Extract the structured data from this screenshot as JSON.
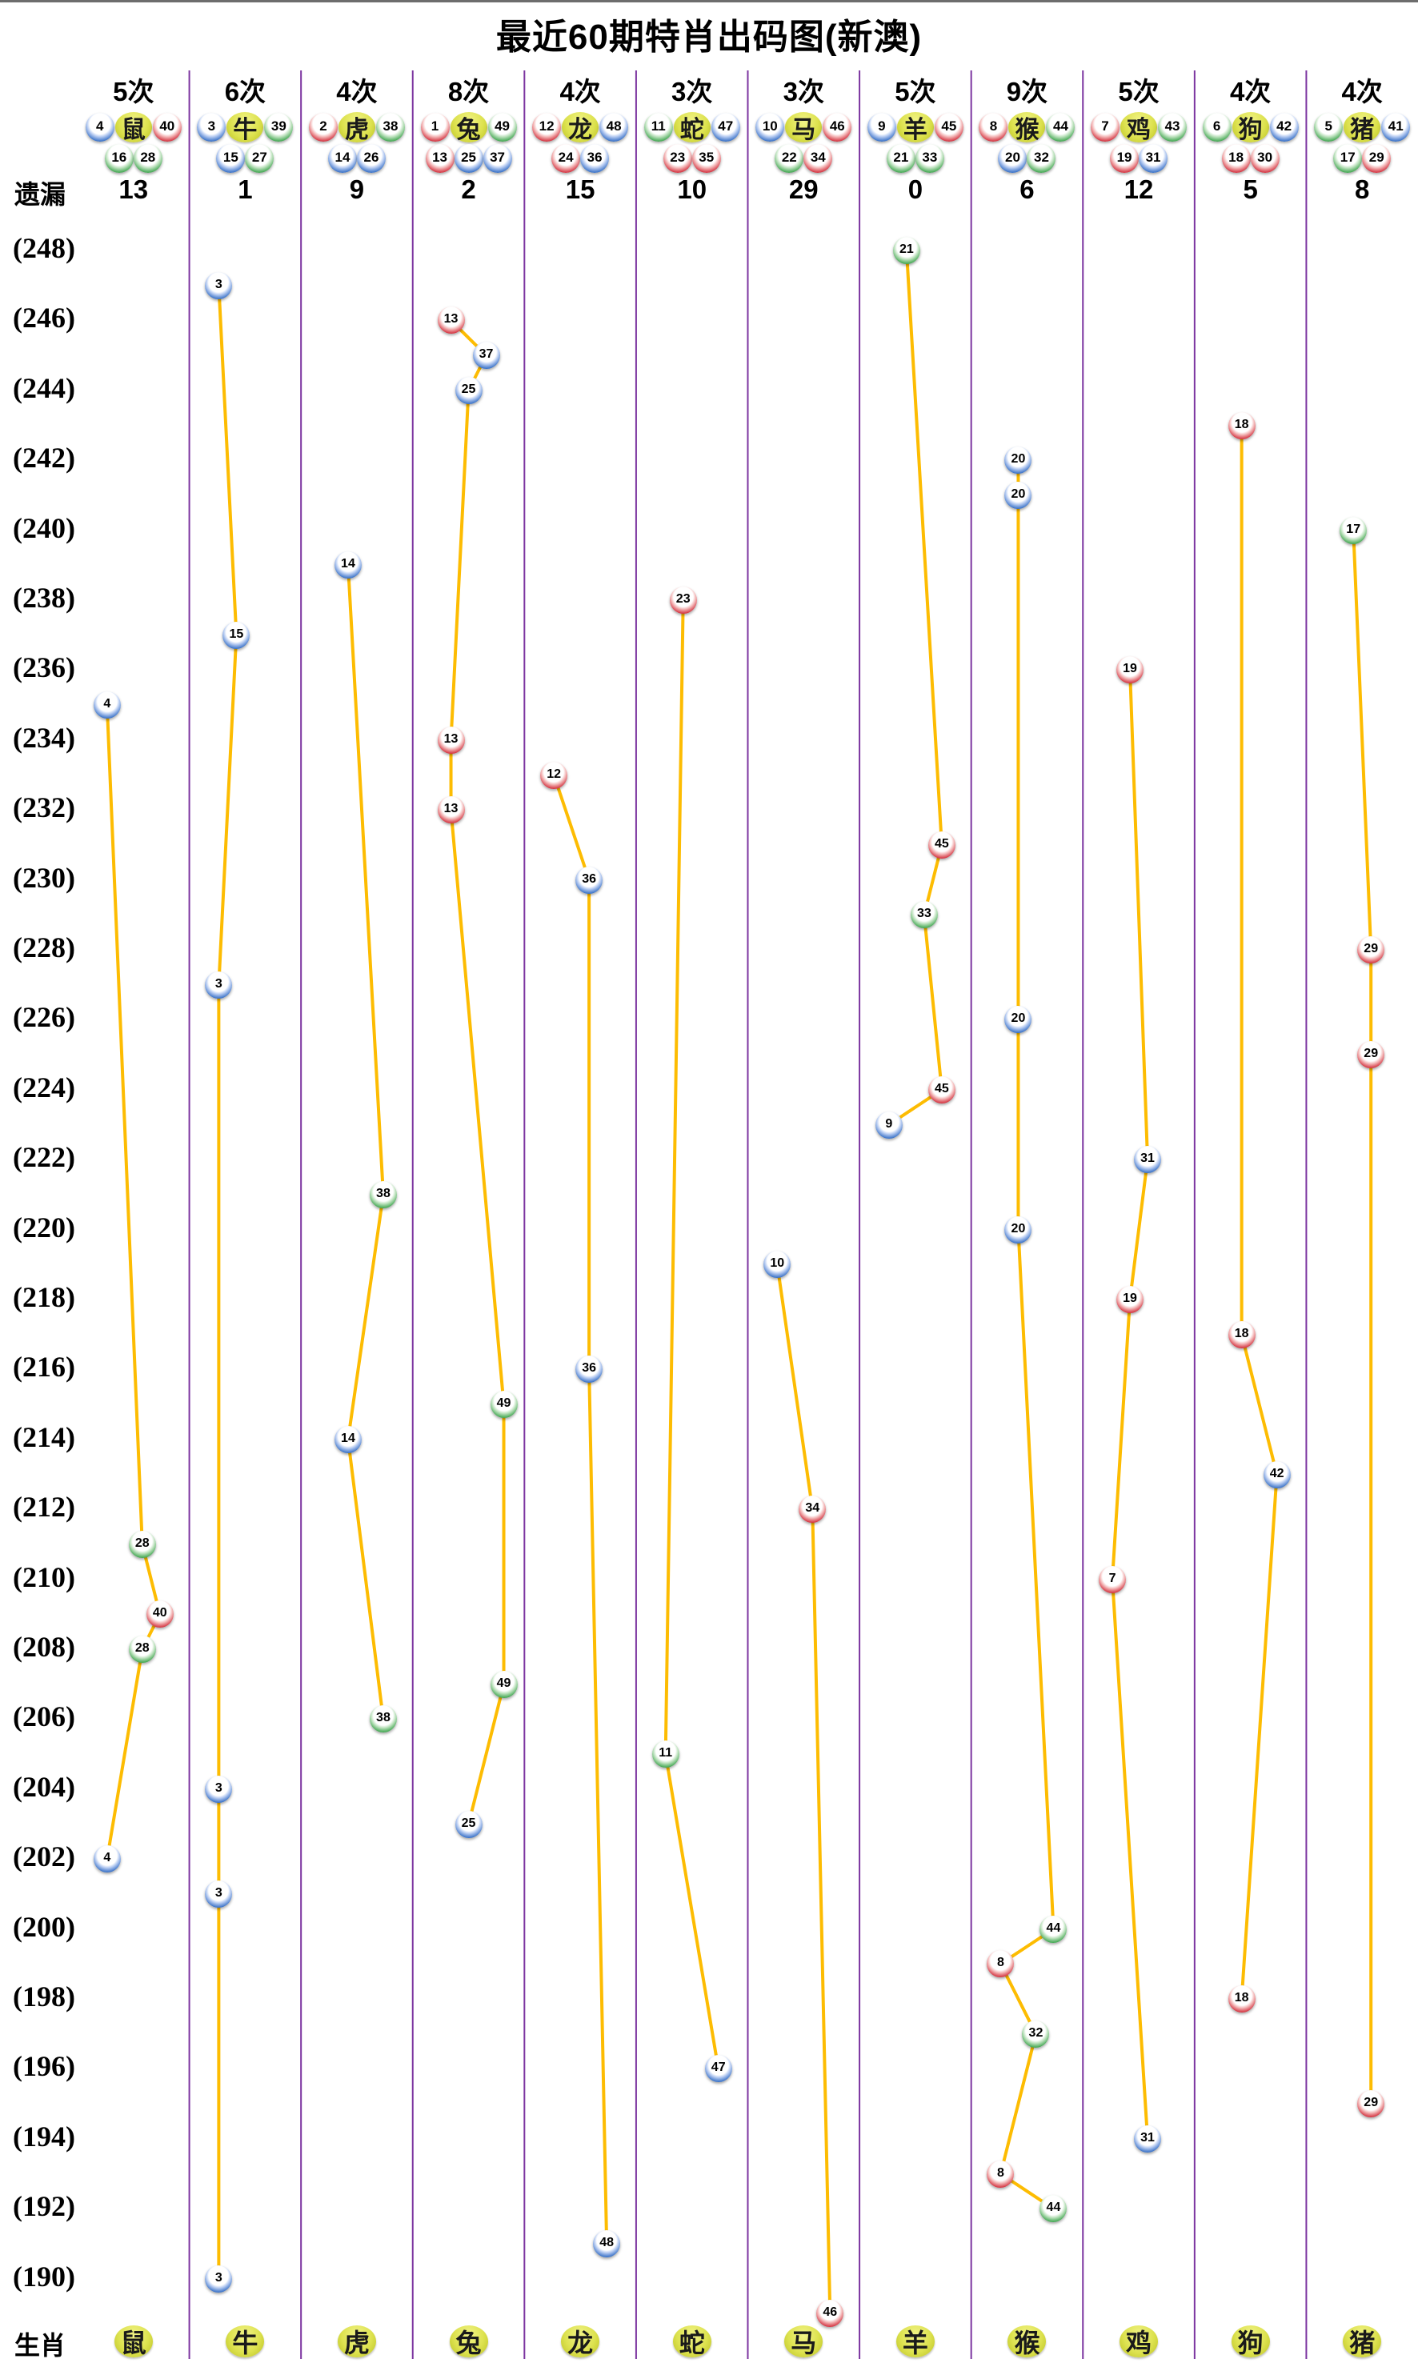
{
  "title": "最近60期特肖出码图(新澳)",
  "axis": {
    "left_label": "遗漏",
    "bottom_label": "生肖"
  },
  "colors": {
    "line": "#fdbc02",
    "separator": "#7c35a0",
    "ball_red": "#cf1f2e",
    "ball_blue": "#2563c0",
    "ball_green": "#2f9e41",
    "zodiac_badge": "#dde24f",
    "text": "#000000"
  },
  "ball_colors": {
    "red": [
      1,
      2,
      7,
      8,
      12,
      13,
      18,
      19,
      23,
      24,
      29,
      30,
      34,
      35,
      40,
      45,
      46
    ],
    "blue": [
      3,
      4,
      9,
      10,
      14,
      15,
      20,
      25,
      26,
      31,
      36,
      37,
      41,
      42,
      47,
      48
    ],
    "green": [
      5,
      6,
      11,
      16,
      17,
      21,
      22,
      27,
      28,
      32,
      33,
      38,
      39,
      43,
      44,
      49
    ]
  },
  "chart_data": {
    "type": "line",
    "title": "最近60期特肖出码图(新澳)",
    "legend_position": "none",
    "grid": "vertical-separators",
    "x_categories": [
      "鼠",
      "牛",
      "虎",
      "兔",
      "龙",
      "蛇",
      "马",
      "羊",
      "猴",
      "鸡",
      "狗",
      "猪"
    ],
    "y_axis": {
      "top_period": 248,
      "bottom_period": 189,
      "tick_step": 2,
      "tick_labels": [
        "(248)",
        "(246)",
        "(244)",
        "(242)",
        "(240)",
        "(238)",
        "(236)",
        "(234)",
        "(232)",
        "(230)",
        "(228)",
        "(226)",
        "(224)",
        "(222)",
        "(220)",
        "(218)",
        "(216)",
        "(214)",
        "(212)",
        "(210)",
        "(208)",
        "(206)",
        "(204)",
        "(202)",
        "(200)",
        "(198)",
        "(196)",
        "(194)",
        "(192)",
        "(190)"
      ]
    },
    "columns": [
      {
        "zodiac": "鼠",
        "count_label": "5次",
        "miss": "13",
        "header_outer": [
          4,
          40
        ],
        "header_inner": [
          16,
          28
        ],
        "points": [
          {
            "period": 235,
            "num": 4
          },
          {
            "period": 211,
            "num": 28
          },
          {
            "period": 209,
            "num": 40
          },
          {
            "period": 208,
            "num": 28
          },
          {
            "period": 202,
            "num": 4
          }
        ]
      },
      {
        "zodiac": "牛",
        "count_label": "6次",
        "miss": "1",
        "header_outer": [
          3,
          39
        ],
        "header_inner": [
          15,
          27
        ],
        "points": [
          {
            "period": 247,
            "num": 3
          },
          {
            "period": 237,
            "num": 15
          },
          {
            "period": 227,
            "num": 3
          },
          {
            "period": 204,
            "num": 3
          },
          {
            "period": 201,
            "num": 3
          },
          {
            "period": 190,
            "num": 3
          }
        ]
      },
      {
        "zodiac": "虎",
        "count_label": "4次",
        "miss": "9",
        "header_outer": [
          2,
          38
        ],
        "header_inner": [
          14,
          26
        ],
        "points": [
          {
            "period": 239,
            "num": 14
          },
          {
            "period": 221,
            "num": 38
          },
          {
            "period": 214,
            "num": 14
          },
          {
            "period": 206,
            "num": 38
          }
        ]
      },
      {
        "zodiac": "兔",
        "count_label": "8次",
        "miss": "2",
        "header_outer": [
          1,
          49
        ],
        "header_inner": [
          13,
          25,
          37
        ],
        "points": [
          {
            "period": 246,
            "num": 13
          },
          {
            "period": 245,
            "num": 37
          },
          {
            "period": 244,
            "num": 25
          },
          {
            "period": 234,
            "num": 13
          },
          {
            "period": 232,
            "num": 13
          },
          {
            "period": 215,
            "num": 49
          },
          {
            "period": 207,
            "num": 49
          },
          {
            "period": 203,
            "num": 25
          }
        ]
      },
      {
        "zodiac": "龙",
        "count_label": "4次",
        "miss": "15",
        "header_outer": [
          12,
          48
        ],
        "header_inner": [
          24,
          36
        ],
        "points": [
          {
            "period": 233,
            "num": 12
          },
          {
            "period": 230,
            "num": 36
          },
          {
            "period": 216,
            "num": 36
          },
          {
            "period": 191,
            "num": 48
          }
        ]
      },
      {
        "zodiac": "蛇",
        "count_label": "3次",
        "miss": "10",
        "header_outer": [
          11,
          47
        ],
        "header_inner": [
          23,
          35
        ],
        "points": [
          {
            "period": 238,
            "num": 23
          },
          {
            "period": 205,
            "num": 11
          },
          {
            "period": 196,
            "num": 47
          }
        ]
      },
      {
        "zodiac": "马",
        "count_label": "3次",
        "miss": "29",
        "header_outer": [
          10,
          46
        ],
        "header_inner": [
          22,
          34
        ],
        "points": [
          {
            "period": 219,
            "num": 10
          },
          {
            "period": 212,
            "num": 34
          },
          {
            "period": 189,
            "num": 46
          }
        ]
      },
      {
        "zodiac": "羊",
        "count_label": "5次",
        "miss": "0",
        "header_outer": [
          9,
          45
        ],
        "header_inner": [
          21,
          33
        ],
        "points": [
          {
            "period": 248,
            "num": 21
          },
          {
            "period": 231,
            "num": 45
          },
          {
            "period": 229,
            "num": 33
          },
          {
            "period": 224,
            "num": 45
          },
          {
            "period": 223,
            "num": 9
          }
        ]
      },
      {
        "zodiac": "猴",
        "count_label": "9次",
        "miss": "6",
        "header_outer": [
          8,
          44
        ],
        "header_inner": [
          20,
          32
        ],
        "points": [
          {
            "period": 242,
            "num": 20
          },
          {
            "period": 241,
            "num": 20
          },
          {
            "period": 226,
            "num": 20
          },
          {
            "period": 220,
            "num": 20
          },
          {
            "period": 200,
            "num": 44
          },
          {
            "period": 199,
            "num": 8
          },
          {
            "period": 197,
            "num": 32
          },
          {
            "period": 193,
            "num": 8
          },
          {
            "period": 192,
            "num": 44
          }
        ]
      },
      {
        "zodiac": "鸡",
        "count_label": "5次",
        "miss": "12",
        "header_outer": [
          7,
          43
        ],
        "header_inner": [
          19,
          31
        ],
        "points": [
          {
            "period": 236,
            "num": 19
          },
          {
            "period": 222,
            "num": 31
          },
          {
            "period": 218,
            "num": 19
          },
          {
            "period": 210,
            "num": 7
          },
          {
            "period": 194,
            "num": 31
          }
        ]
      },
      {
        "zodiac": "狗",
        "count_label": "4次",
        "miss": "5",
        "header_outer": [
          6,
          42
        ],
        "header_inner": [
          18,
          30
        ],
        "points": [
          {
            "period": 243,
            "num": 18
          },
          {
            "period": 217,
            "num": 18
          },
          {
            "period": 213,
            "num": 42
          },
          {
            "period": 198,
            "num": 18
          }
        ]
      },
      {
        "zodiac": "猪",
        "count_label": "4次",
        "miss": "8",
        "header_outer": [
          5,
          41
        ],
        "header_inner": [
          17,
          29
        ],
        "points": [
          {
            "period": 240,
            "num": 17
          },
          {
            "period": 228,
            "num": 29
          },
          {
            "period": 225,
            "num": 29
          },
          {
            "period": 195,
            "num": 29
          }
        ]
      }
    ]
  }
}
